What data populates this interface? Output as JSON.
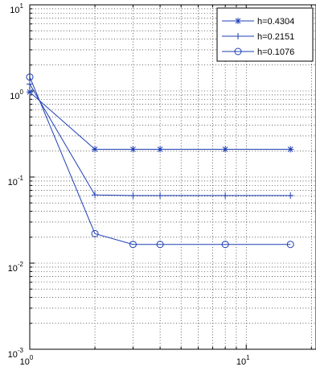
{
  "chart_data": {
    "type": "line",
    "xscale": "log",
    "yscale": "log",
    "xlim": [
      1,
      21
    ],
    "ylim": [
      0.001,
      10
    ],
    "grid": true,
    "legend_position": "top-right",
    "x_ticks": [
      {
        "base": "10",
        "exp": "0",
        "value": 1
      },
      {
        "base": "10",
        "exp": "1",
        "value": 10
      }
    ],
    "y_ticks": [
      {
        "base": "10",
        "exp": "1",
        "value": 10
      },
      {
        "base": "10",
        "exp": "0",
        "value": 1
      },
      {
        "base": "10",
        "exp": "-1",
        "value": 0.1
      },
      {
        "base": "10",
        "exp": "-2",
        "value": 0.01
      },
      {
        "base": "10",
        "exp": "-3",
        "value": 0.001
      }
    ],
    "line_color": "#1f3fb5",
    "series": [
      {
        "name": "h=0.4304",
        "marker": "star",
        "x": [
          1,
          2,
          3,
          4,
          8,
          16
        ],
        "y": [
          0.97,
          0.21,
          0.21,
          0.21,
          0.21,
          0.21
        ]
      },
      {
        "name": "h=0.2151",
        "marker": "plus",
        "x": [
          1,
          2,
          3,
          4,
          8,
          16
        ],
        "y": [
          1.2,
          0.062,
          0.061,
          0.061,
          0.061,
          0.061
        ]
      },
      {
        "name": "h=0.1076",
        "marker": "circle",
        "x": [
          1,
          2,
          3,
          4,
          8,
          16
        ],
        "y": [
          1.45,
          0.022,
          0.0165,
          0.0165,
          0.0165,
          0.0165
        ]
      }
    ]
  }
}
